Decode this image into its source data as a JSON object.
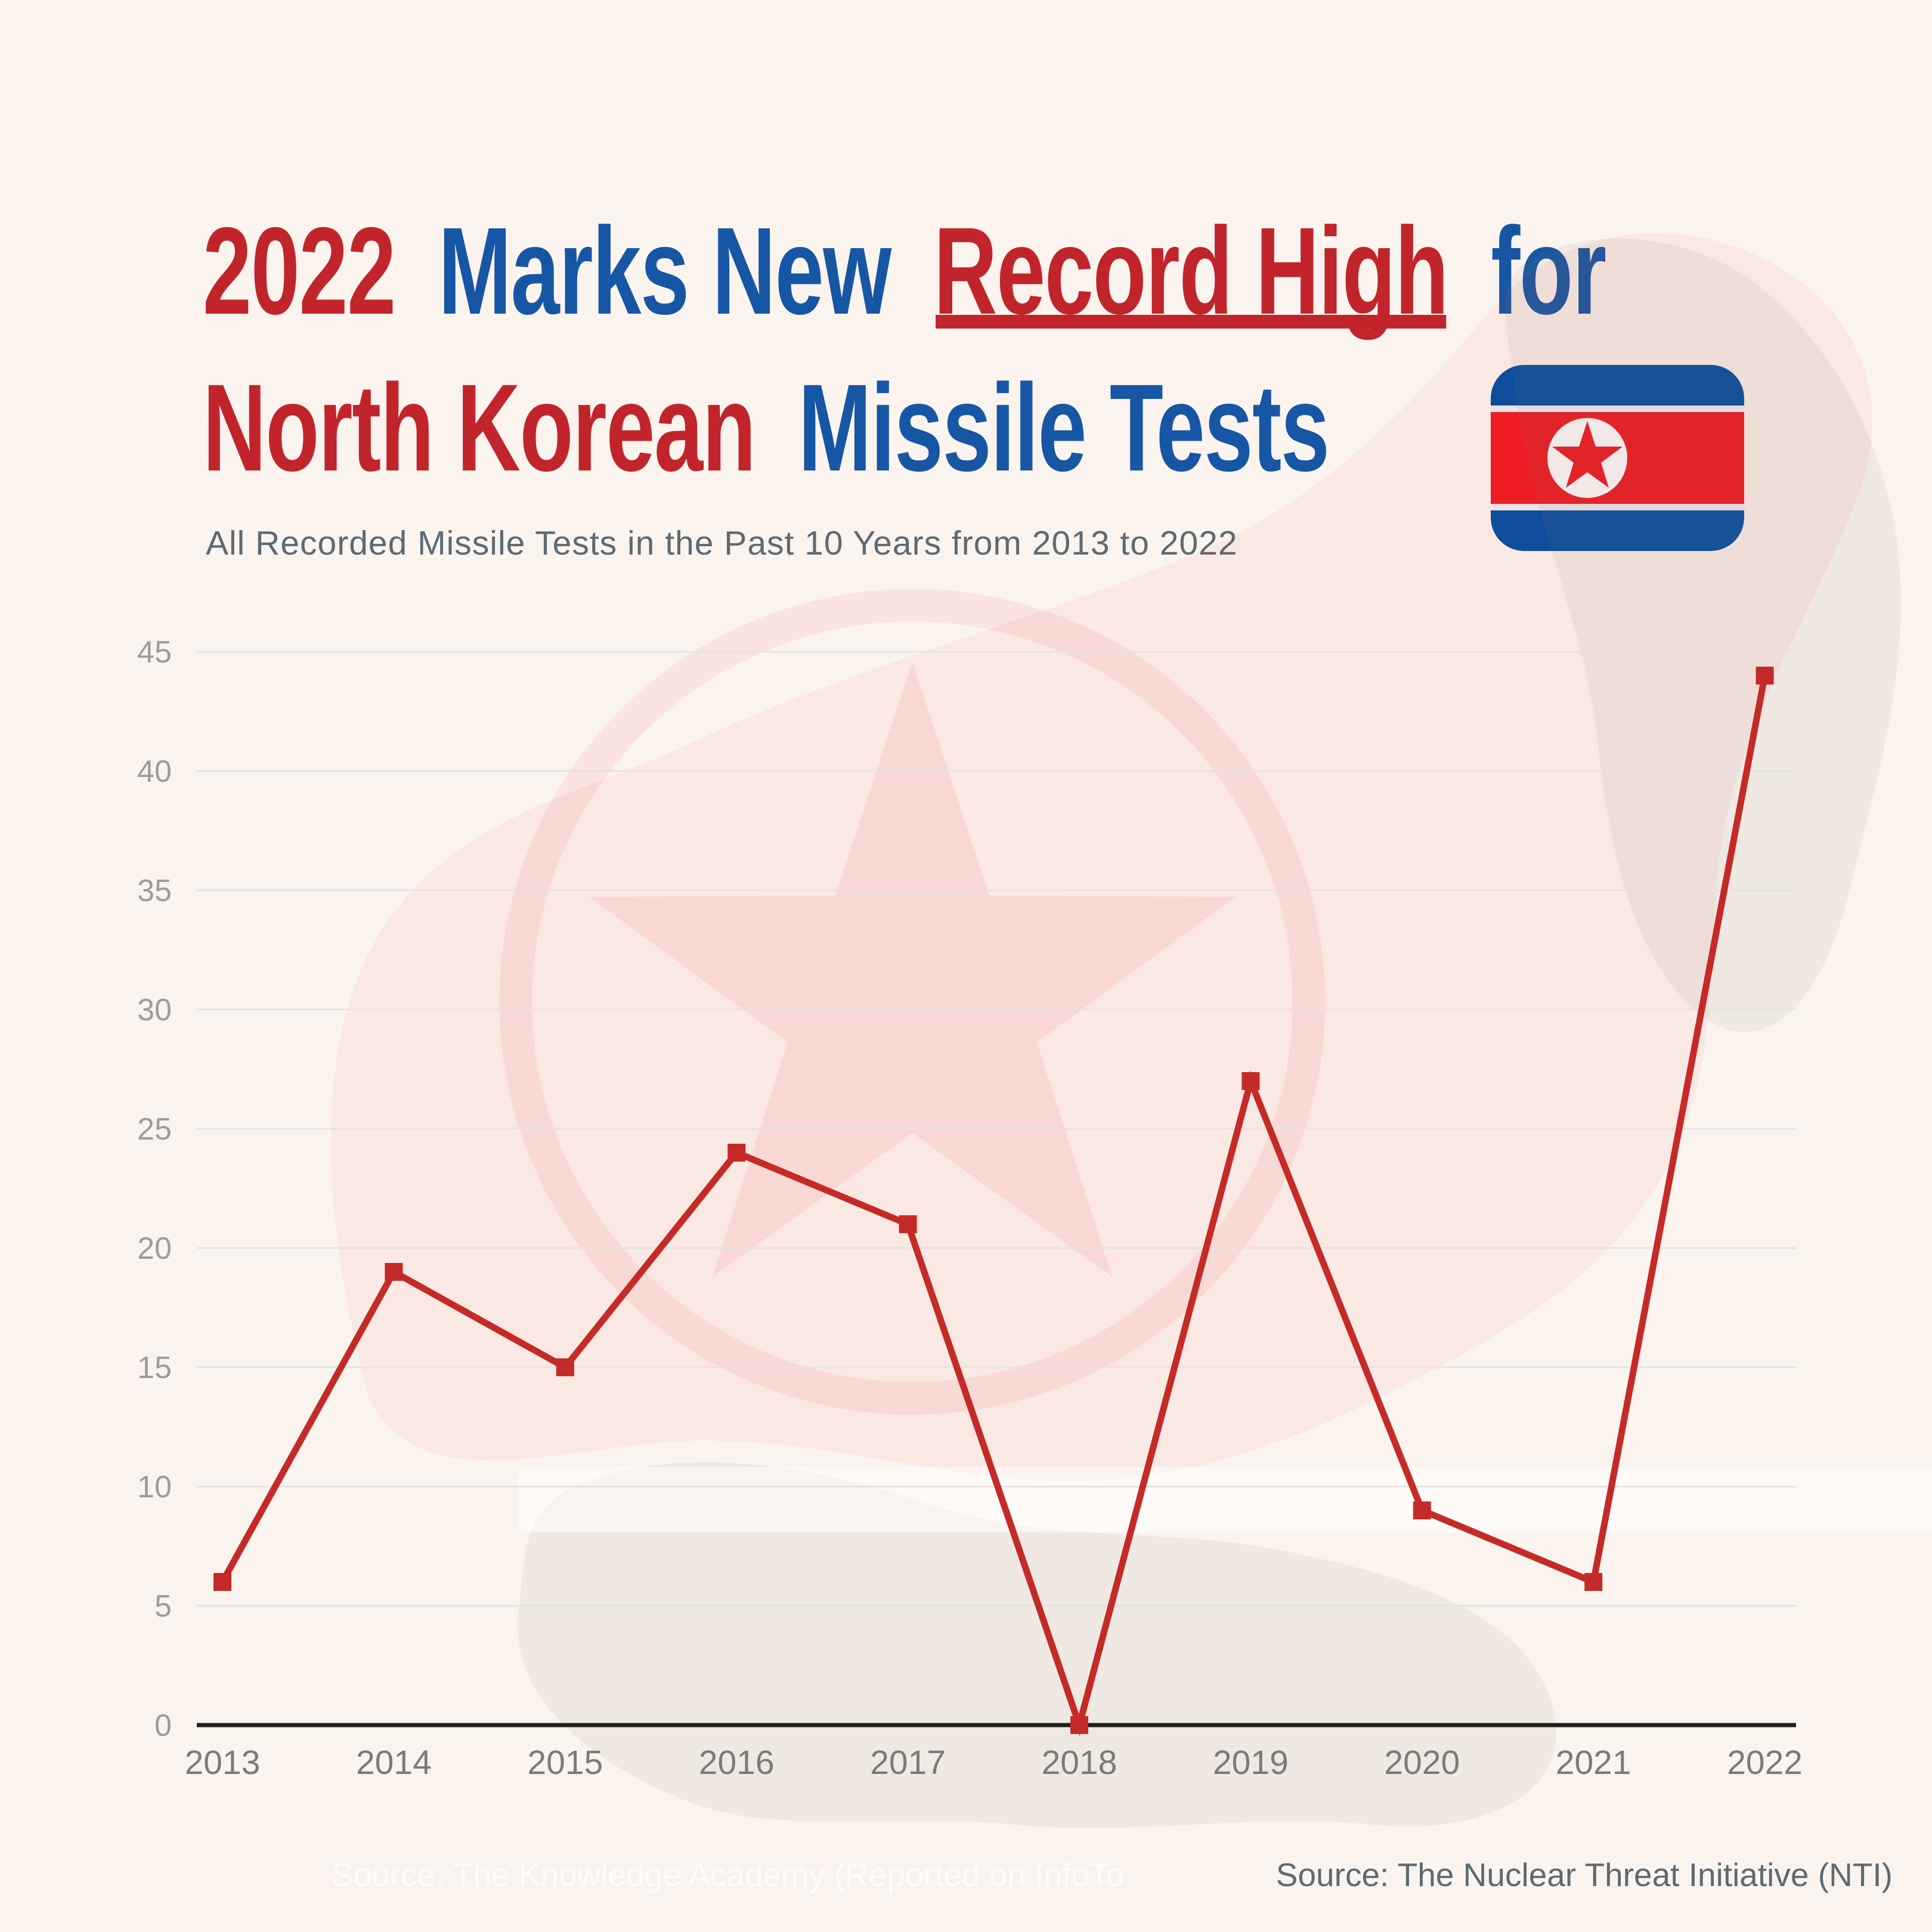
{
  "header": {
    "title": {
      "seg1": "2022",
      "seg2": "Marks New",
      "seg3": "Record High",
      "seg4": "for",
      "seg5": "North Korean",
      "seg6": "Missile Tests"
    },
    "subtitle": "All Recorded Missile Tests in the Past 10 Years from 2013 to 2022",
    "flag_icon": "north-korea-flag-icon"
  },
  "footer": {
    "watermark_source": "Source: The Knowledge Academy (Reported on InfoTo",
    "source_credit": "Source: The Nuclear Threat Initiative (NTI)"
  },
  "colors": {
    "bg": "#FBF4EE",
    "title_red": "#C2242B",
    "title_blue": "#1656A5",
    "subtitle_gray": "#5C6A73",
    "axis_label_gray": "#9C9C9C",
    "x_label_gray": "#7B7B7B",
    "gridline": "#E6E3E0",
    "axis_line": "#1F1F1F",
    "line_red": "#C42A28",
    "flag_blue": "#0351A3",
    "flag_red": "#EC1C24",
    "watermark_text": "#FFFDFB"
  },
  "chart_data": {
    "type": "line",
    "categories": [
      "2013",
      "2014",
      "2015",
      "2016",
      "2017",
      "2018",
      "2019",
      "2020",
      "2021",
      "2022"
    ],
    "series": [
      {
        "name": "Recorded Missile Tests",
        "values": [
          6,
          19,
          15,
          24,
          21,
          0,
          27,
          9,
          6,
          44
        ]
      }
    ],
    "title": "All Recorded Missile Tests in the Past 10 Years from 2013 to 2022",
    "xlabel": "",
    "ylabel": "",
    "ylim": [
      0,
      45
    ],
    "yticks": [
      0,
      5,
      10,
      15,
      20,
      25,
      30,
      35,
      40,
      45
    ],
    "grid": true,
    "legend_position": "none",
    "line_color": "#C42A28",
    "marker": "square"
  }
}
